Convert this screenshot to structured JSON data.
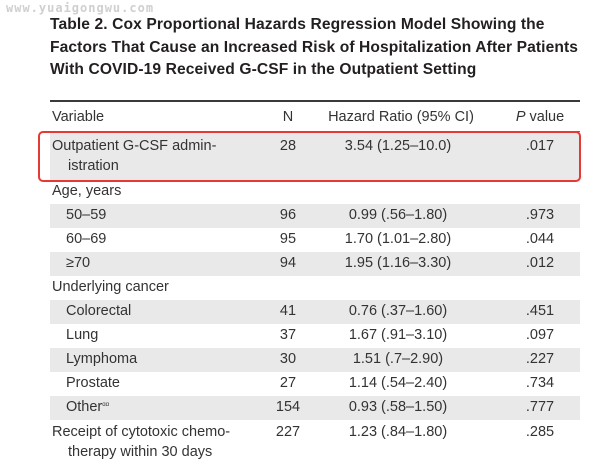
{
  "watermark": "www.yuaigongwu.com",
  "caption": {
    "text": "Table 2.  Cox Proportional Hazards Regression Model Showing the Factors That Cause an Increased Risk of Hospitalization After Patients With COVID-19 Received G-CSF in the Outpatient Setting"
  },
  "table": {
    "headers": {
      "variable": "Variable",
      "n": "N",
      "hazard_ratio": "Hazard Ratio (95% CI)",
      "p_italic": "P",
      "p_rest": " value"
    },
    "rows": [
      {
        "variable": "Outpatient G-CSF admin-",
        "variable_line2": "istration",
        "n": "28",
        "hr": "3.54 (1.25–10.0)",
        "p": ".017",
        "shaded": true,
        "highlighted": true
      },
      {
        "variable": "Age, years",
        "n": "",
        "hr": "",
        "p": "",
        "shaded": false
      },
      {
        "variable": "50–59",
        "n": "96",
        "hr": "0.99 (.56–1.80)",
        "p": ".973",
        "shaded": true,
        "indent": true
      },
      {
        "variable": "60–69",
        "n": "95",
        "hr": "1.70 (1.01–2.80)",
        "p": ".044",
        "shaded": false,
        "indent": true
      },
      {
        "variable": "≥70",
        "n": "94",
        "hr": "1.95 (1.16–3.30)",
        "p": ".012",
        "shaded": true,
        "indent": true
      },
      {
        "variable": "Underlying cancer",
        "n": "",
        "hr": "",
        "p": "",
        "shaded": false
      },
      {
        "variable": "Colorectal",
        "n": "41",
        "hr": "0.76 (.37–1.60)",
        "p": ".451",
        "shaded": true,
        "indent": true
      },
      {
        "variable": "Lung",
        "n": "37",
        "hr": "1.67 (.91–3.10)",
        "p": ".097",
        "shaded": false,
        "indent": true
      },
      {
        "variable": "Lymphoma",
        "n": "30",
        "hr": "1.51 (.7–2.90)",
        "p": ".227",
        "shaded": true,
        "indent": true
      },
      {
        "variable": "Prostate",
        "n": "27",
        "hr": "1.14 (.54–2.40)",
        "p": ".734",
        "shaded": false,
        "indent": true
      },
      {
        "variable": "Other",
        "variable_sup": "ᵅᵅ",
        "n": "154",
        "hr": "0.93 (.58–1.50)",
        "p": ".777",
        "shaded": true,
        "indent": true
      },
      {
        "variable": "Receipt of cytotoxic chemo-",
        "variable_line2": "therapy within 30 days",
        "n": "227",
        "hr": "1.23 (.84–1.80)",
        "p": ".285",
        "shaded": false
      }
    ]
  }
}
